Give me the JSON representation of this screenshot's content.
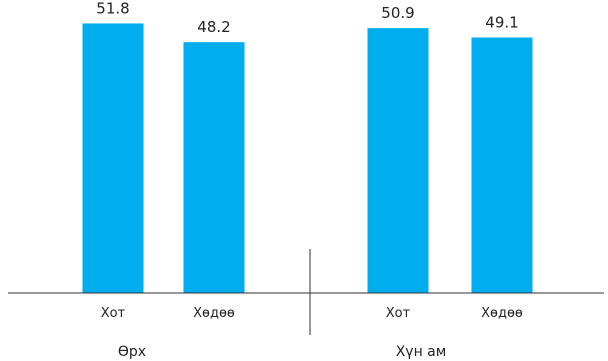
{
  "chart_data": {
    "type": "bar",
    "groups": [
      {
        "label": "Өрх",
        "categories": [
          "Хот",
          "Хөдөө"
        ],
        "values": [
          51.8,
          48.2
        ],
        "value_labels": [
          "51.8",
          "48.2"
        ]
      },
      {
        "label": "Хүн ам",
        "categories": [
          "Хот",
          "Хөдөө"
        ],
        "values": [
          50.9,
          49.1
        ],
        "value_labels": [
          "50.9",
          "49.1"
        ]
      }
    ],
    "bar_color": "#00AEEF",
    "axis_color": "#333333",
    "ylim": [
      0,
      54
    ],
    "grid": false,
    "legend": "none"
  }
}
